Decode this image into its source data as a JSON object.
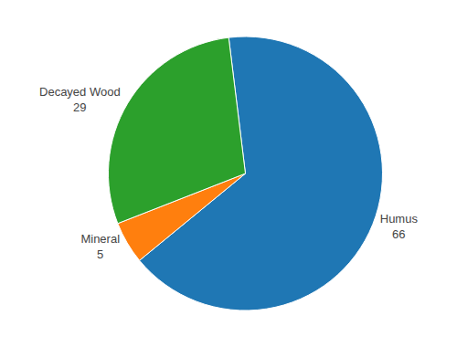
{
  "chart_data": {
    "type": "pie",
    "categories": [
      "Humus",
      "Mineral",
      "Decayed Wood"
    ],
    "values": [
      66,
      5,
      29
    ],
    "data_labels": true
  }
}
